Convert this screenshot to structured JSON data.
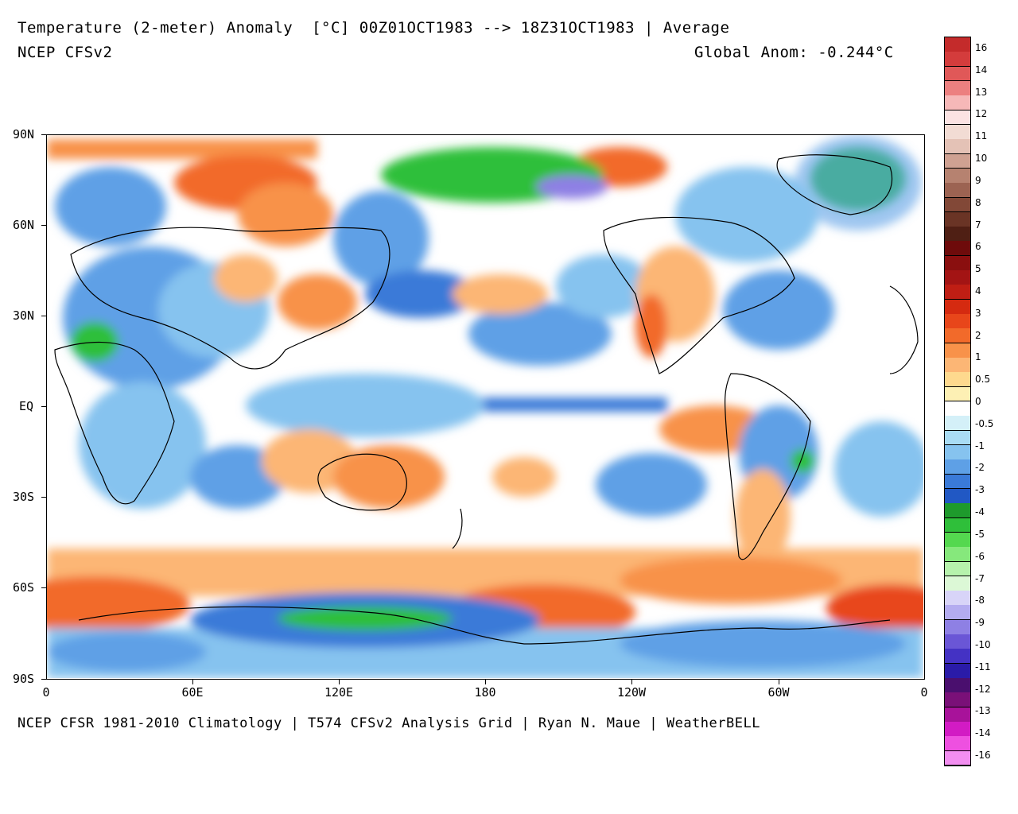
{
  "header": {
    "title": "Temperature (2-meter) Anomaly  [°C] 00Z01OCT1983 --> 18Z31OCT1983 | Average",
    "model": "NCEP CFSv2",
    "global_anom": "Global Anom: -0.244°C"
  },
  "footer": {
    "credit": "NCEP CFSR 1981-2010 Climatology | T574 CFSv2 Analysis Grid | Ryan N. Maue | WeatherBELL"
  },
  "axes": {
    "lat_labels": [
      "90N",
      "60N",
      "30N",
      "EQ",
      "30S",
      "60S",
      "90S"
    ],
    "lon_labels": [
      "0",
      "60E",
      "120E",
      "180",
      "120W",
      "60W",
      "0"
    ]
  },
  "legend": {
    "labels": [
      "16",
      "14",
      "13",
      "12",
      "11",
      "10",
      "9",
      "8",
      "7",
      "6",
      "5",
      "4",
      "3",
      "2",
      "1",
      "0.5",
      "0",
      "-0.5",
      "-1",
      "-2",
      "-3",
      "-4",
      "-5",
      "-6",
      "-7",
      "-8",
      "-9",
      "-10",
      "-11",
      "-12",
      "-13",
      "-14",
      "-16"
    ],
    "colors": [
      "#c42b2b",
      "#d43c3c",
      "#e05858",
      "#ec8080",
      "#f6b8b8",
      "#fbe3e3",
      "#f2dcd4",
      "#e4c2b6",
      "#cfa192",
      "#b68270",
      "#9c6352",
      "#824837",
      "#6a3425",
      "#4f1f14",
      "#6e0b0b",
      "#8a0f0f",
      "#a31414",
      "#bf1e14",
      "#d52a10",
      "#e8461a",
      "#f26a2a",
      "#f8924a",
      "#fcb675",
      "#fed98e",
      "#fdf0b4",
      "#ffffff",
      "#d4f0f8",
      "#a9dcf4",
      "#86c3ef",
      "#5ea0e6",
      "#3a7ad8",
      "#2158c4",
      "#1e9a2c",
      "#2fbf3a",
      "#54d84f",
      "#86e87c",
      "#b6f2ac",
      "#dcf8d6",
      "#d8d4f8",
      "#b4acf0",
      "#8e80e4",
      "#6a56d6",
      "#4432c4",
      "#2a1ba8",
      "#4a0f6e",
      "#7a1078",
      "#a8129a",
      "#d21bc4",
      "#ee50e0",
      "#f28ef0"
    ],
    "scale_min": -16,
    "scale_max": 16
  },
  "colors": {
    "ocean_neutral": "#ffffff",
    "warm": "#f8a060",
    "cool": "#5ea0e6",
    "cold_green": "#2fbf3a"
  }
}
